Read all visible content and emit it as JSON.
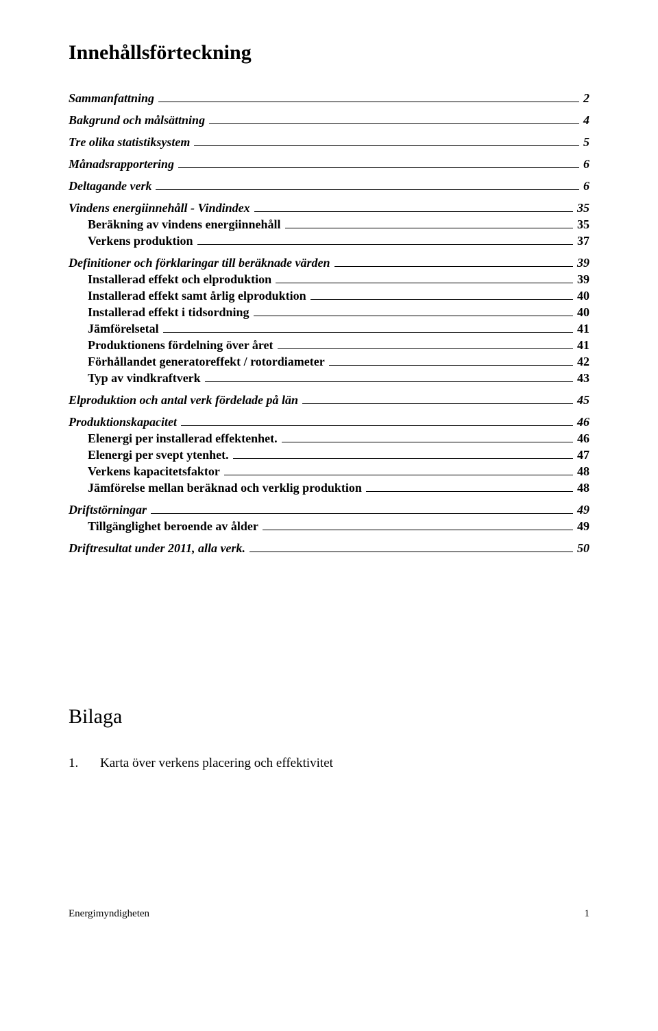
{
  "title": "Innehållsförteckning",
  "toc": [
    {
      "level": 1,
      "label": "Sammanfattning",
      "page": "2",
      "gap": false
    },
    {
      "level": 1,
      "label": "Bakgrund och målsättning",
      "page": "4",
      "gap": true
    },
    {
      "level": 1,
      "label": "Tre olika statistiksystem",
      "page": "5",
      "gap": true
    },
    {
      "level": 1,
      "label": "Månadsrapportering",
      "page": "6",
      "gap": true
    },
    {
      "level": 1,
      "label": "Deltagande verk",
      "page": "6",
      "gap": true
    },
    {
      "level": 1,
      "label": "Vindens energiinnehåll - Vindindex",
      "page": "35",
      "gap": true
    },
    {
      "level": 2,
      "label": "Beräkning av vindens energiinnehåll",
      "page": "35",
      "gap": false
    },
    {
      "level": 2,
      "label": "Verkens produktion",
      "page": "37",
      "gap": false
    },
    {
      "level": 1,
      "label": "Definitioner och förklaringar till beräknade värden",
      "page": "39",
      "gap": true
    },
    {
      "level": 2,
      "label": "Installerad effekt och elproduktion",
      "page": "39",
      "gap": false
    },
    {
      "level": 2,
      "label": "Installerad effekt samt årlig elproduktion",
      "page": "40",
      "gap": false
    },
    {
      "level": 2,
      "label": "Installerad effekt i tidsordning",
      "page": "40",
      "gap": false
    },
    {
      "level": 2,
      "label": "Jämförelsetal",
      "page": "41",
      "gap": false
    },
    {
      "level": 2,
      "label": "Produktionens fördelning över året",
      "page": "41",
      "gap": false
    },
    {
      "level": 2,
      "label": "Förhållandet generatoreffekt / rotordiameter",
      "page": "42",
      "gap": false
    },
    {
      "level": 2,
      "label": "Typ av vindkraftverk",
      "page": "43",
      "gap": false
    },
    {
      "level": 1,
      "label": "Elproduktion och antal verk fördelade på län",
      "page": "45",
      "gap": true
    },
    {
      "level": 1,
      "label": "Produktionskapacitet",
      "page": "46",
      "gap": true
    },
    {
      "level": 2,
      "label": "Elenergi per installerad effektenhet.",
      "page": "46",
      "gap": false
    },
    {
      "level": 2,
      "label": "Elenergi per svept ytenhet.",
      "page": "47",
      "gap": false
    },
    {
      "level": 2,
      "label": "Verkens kapacitetsfaktor",
      "page": "48",
      "gap": false
    },
    {
      "level": 2,
      "label": "Jämförelse mellan beräknad och verklig produktion",
      "page": "48",
      "gap": false
    },
    {
      "level": 1,
      "label": "Driftstörningar",
      "page": "49",
      "gap": true
    },
    {
      "level": 2,
      "label": "Tillgänglighet beroende av ålder",
      "page": "49",
      "gap": false
    },
    {
      "level": 1,
      "label": "Driftresultat under 2011, alla verk.",
      "page": "50",
      "gap": true
    }
  ],
  "appendix": {
    "heading": "Bilaga",
    "items": [
      {
        "num": "1.",
        "text": "Karta över verkens placering och effektivitet"
      }
    ]
  },
  "footer": {
    "label": "Energimyndigheten",
    "page": "1"
  }
}
